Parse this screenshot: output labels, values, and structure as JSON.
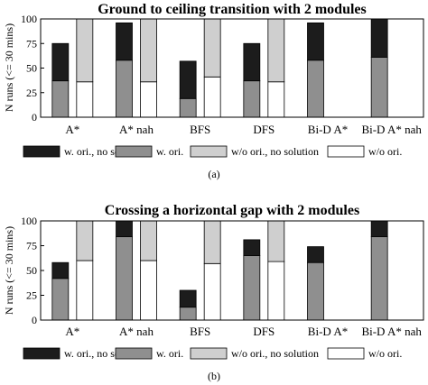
{
  "colors": {
    "w_ori_no_solution": "#1c1c1c",
    "w_ori": "#8f8f8f",
    "wo_ori_no_solution": "#cfcfcf",
    "wo_ori": "#ffffff",
    "frame": "#000000"
  },
  "chart_data": [
    {
      "type": "bar",
      "stacked": true,
      "title": "Ground to ceiling transition with 2 modules",
      "ylabel": "N runs (<= 30 mins)",
      "ylim": [
        0,
        100
      ],
      "yticks": [
        0,
        25,
        50,
        75,
        100
      ],
      "grid": false,
      "legend_position": "bottom",
      "caption": "(a)",
      "categories": [
        "A*",
        "A* nah",
        "BFS",
        "DFS",
        "Bi-D A*",
        "Bi-D A* nah"
      ],
      "groups": [
        {
          "name": "w. ori.",
          "stack": [
            {
              "name": "w. ori.",
              "color_key": "w_ori",
              "values": [
                37,
                58,
                19,
                37,
                58,
                61
              ]
            },
            {
              "name": "w. ori., no solution",
              "color_key": "w_ori_no_solution",
              "values": [
                38,
                38,
                38,
                38,
                38,
                39
              ]
            }
          ]
        },
        {
          "name": "w/o ori.",
          "stack": [
            {
              "name": "w/o ori.",
              "color_key": "wo_ori",
              "values": [
                36,
                36,
                41,
                36,
                0,
                0
              ]
            },
            {
              "name": "w/o ori., no solution",
              "color_key": "wo_ori_no_solution",
              "values": [
                64,
                64,
                59,
                64,
                0,
                0
              ]
            }
          ]
        }
      ],
      "legend": [
        "w. ori., no solution",
        "w. ori.",
        "w/o ori., no solution",
        "w/o ori."
      ]
    },
    {
      "type": "bar",
      "stacked": true,
      "title": "Crossing a horizontal gap with 2 modules",
      "ylabel": "N runs (<= 30 mins)",
      "ylim": [
        0,
        100
      ],
      "yticks": [
        0,
        25,
        50,
        75,
        100
      ],
      "grid": false,
      "legend_position": "bottom",
      "caption": "(b)",
      "categories": [
        "A*",
        "A* nah",
        "BFS",
        "DFS",
        "Bi-D A*",
        "Bi-D A* nah"
      ],
      "groups": [
        {
          "name": "w. ori.",
          "stack": [
            {
              "name": "w. ori.",
              "color_key": "w_ori",
              "values": [
                42,
                84,
                13,
                65,
                58,
                84
              ]
            },
            {
              "name": "w. ori., no solution",
              "color_key": "w_ori_no_solution",
              "values": [
                16,
                16,
                17,
                16,
                16,
                16
              ]
            }
          ]
        },
        {
          "name": "w/o ori.",
          "stack": [
            {
              "name": "w/o ori.",
              "color_key": "wo_ori",
              "values": [
                60,
                60,
                57,
                59,
                0,
                0
              ]
            },
            {
              "name": "w/o ori., no solution",
              "color_key": "wo_ori_no_solution",
              "values": [
                40,
                40,
                43,
                41,
                0,
                0
              ]
            }
          ]
        }
      ],
      "legend": [
        "w. ori., no solution",
        "w. ori.",
        "w/o ori., no solution",
        "w/o ori."
      ]
    }
  ]
}
